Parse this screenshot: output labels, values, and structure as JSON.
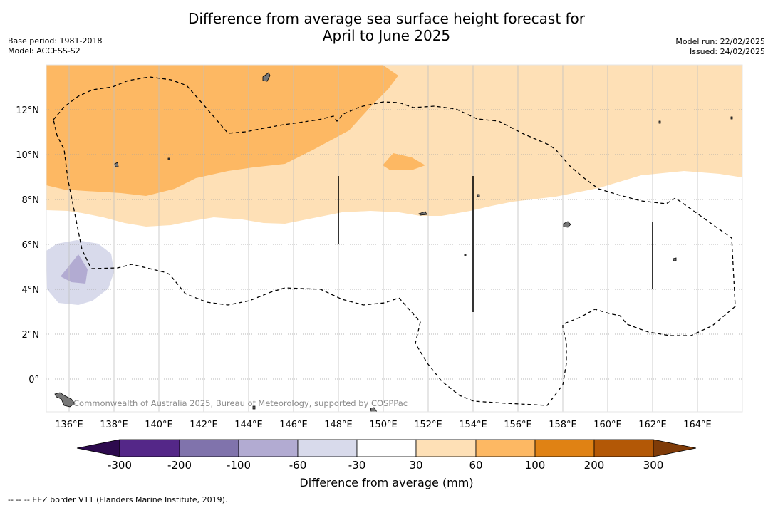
{
  "title_line1": "Difference from average sea surface height forecast for",
  "title_line2": "April to June 2025",
  "left_info": [
    "Base period: 1981-2018",
    "Model: ACCESS-S2"
  ],
  "right_info": [
    "Model run: 22/02/2025",
    "Issued: 24/02/2025"
  ],
  "watermark": "Commonwealth of Australia 2025, Bureau of Meteorology, supported by COSPPac",
  "lon_labels": [
    "136°E",
    "138°E",
    "140°E",
    "142°E",
    "144°E",
    "146°E",
    "148°E",
    "150°E",
    "152°E",
    "154°E",
    "156°E",
    "158°E",
    "160°E",
    "162°E",
    "164°E"
  ],
  "lat_labels": [
    "12°N",
    "10°N",
    "8°N",
    "6°N",
    "4°N",
    "2°N",
    "0°"
  ],
  "colorbar": {
    "label": "Difference from average (mm)",
    "ticks": [
      "-300",
      "-200",
      "-100",
      "-60",
      "-30",
      "30",
      "60",
      "100",
      "200",
      "300"
    ],
    "colors": [
      "#2d0a4e",
      "#542788",
      "#8073ac",
      "#b2abd2",
      "#d8daeb",
      "#ffffff",
      "#fee0b6",
      "#fdb863",
      "#e08214",
      "#b35806",
      "#7f3b08"
    ]
  },
  "footnote": "--  --  -- EEZ border V11 (Flanders Marine Institute, 2019)."
}
